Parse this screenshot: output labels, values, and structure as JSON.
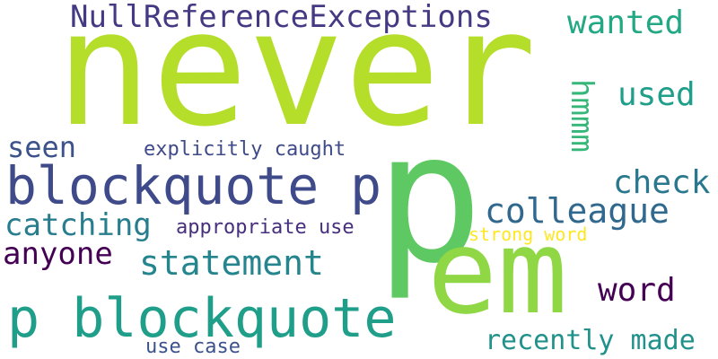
{
  "words": [
    {
      "text": "never",
      "color": "#b5de2b"
    },
    {
      "text": "p",
      "color": "#5ec962"
    },
    {
      "text": "em",
      "color": "#8fd744"
    },
    {
      "text": "NullReferenceExceptions",
      "color": "#443983"
    },
    {
      "text": "wanted",
      "color": "#22a884"
    },
    {
      "text": "used",
      "color": "#1f9e89"
    },
    {
      "text": "hmmm",
      "color": "#35b779"
    },
    {
      "text": "seen",
      "color": "#3b528b"
    },
    {
      "text": "explicitly caught",
      "color": "#3e4a89"
    },
    {
      "text": "blockquote p",
      "color": "#3e4a89"
    },
    {
      "text": "check",
      "color": "#2a788e"
    },
    {
      "text": "colleague",
      "color": "#31688e"
    },
    {
      "text": "catching",
      "color": "#287d8e"
    },
    {
      "text": "appropriate use",
      "color": "#472f7d"
    },
    {
      "text": "strong word",
      "color": "#fde725"
    },
    {
      "text": "anyone",
      "color": "#440154"
    },
    {
      "text": "statement",
      "color": "#25858e"
    },
    {
      "text": "word",
      "color": "#440154"
    },
    {
      "text": "p blockquote",
      "color": "#1f9e89"
    },
    {
      "text": "recently made",
      "color": "#21918c"
    },
    {
      "text": "use case",
      "color": "#3b528b"
    }
  ]
}
